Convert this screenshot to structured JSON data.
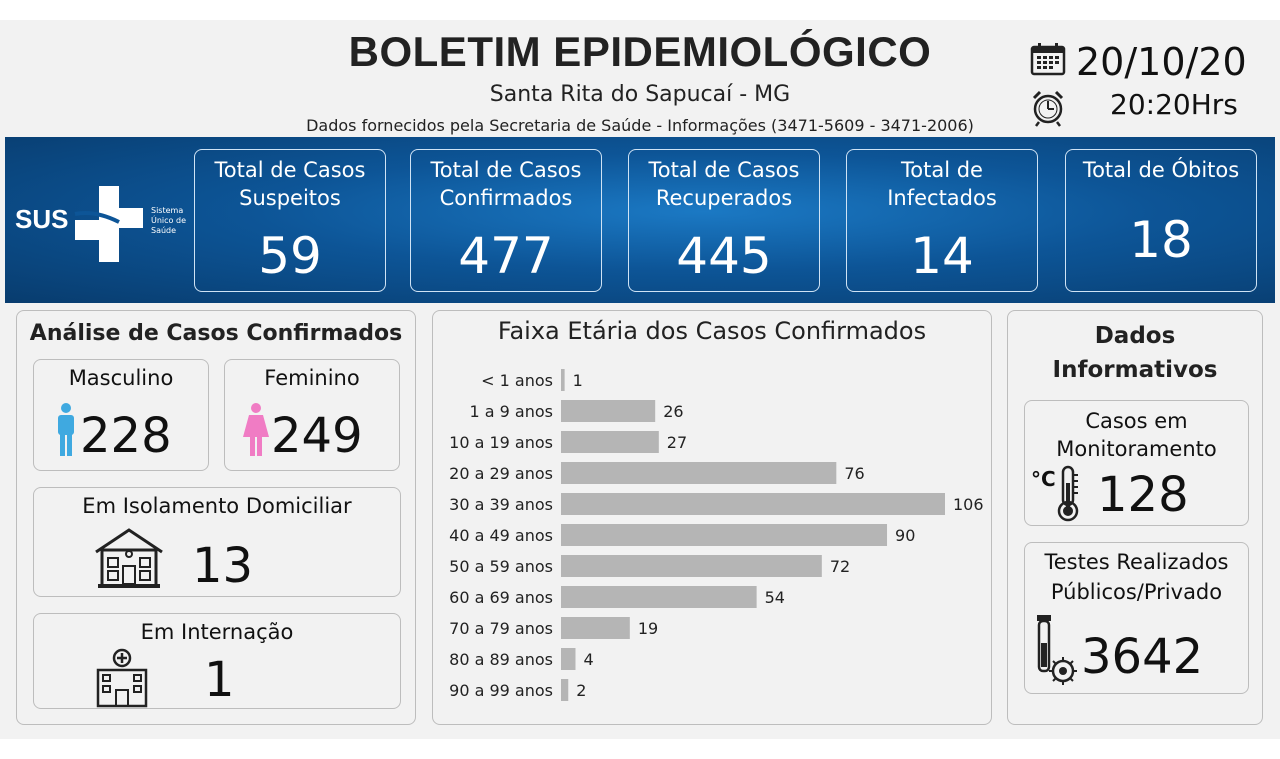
{
  "header": {
    "title": "BOLETIM EPIDEMIOLÓGICO",
    "city": "Santa Rita do Sapucaí - MG",
    "source": "Dados fornecidos pela Secretaria de Saúde - Informações (3471-5609 - 3471-2006)",
    "date": "20/10/20",
    "time": "20:20Hrs"
  },
  "logo": {
    "text": "SUS",
    "subtitle": "Sistema Único de Saúde"
  },
  "stats": [
    {
      "label_line1": "Total de Casos",
      "label_line2": "Suspeitos",
      "value": "59"
    },
    {
      "label_line1": "Total de Casos",
      "label_line2": "Confirmados",
      "value": "477"
    },
    {
      "label_line1": "Total de Casos",
      "label_line2": "Recuperados",
      "value": "445"
    },
    {
      "label_line1": "Total de",
      "label_line2": "Infectados",
      "value": "14"
    },
    {
      "label_line1": "Total de Óbitos",
      "label_line2": "",
      "value": "18"
    }
  ],
  "analysis": {
    "title": "Análise de Casos Confirmados",
    "male": {
      "label": "Masculino",
      "value": "228"
    },
    "female": {
      "label": "Feminino",
      "value": "249"
    },
    "isolation": {
      "label": "Em Isolamento Domiciliar",
      "value": "13"
    },
    "hospital": {
      "label": "Em Internação",
      "value": "1"
    }
  },
  "chart_data": {
    "type": "bar",
    "orientation": "horizontal",
    "title": "Faixa Etária dos Casos Confirmados",
    "categories": [
      "< 1 anos",
      "1 a 9 anos",
      "10 a 19 anos",
      "20 a 29 anos",
      "30 a 39 anos",
      "40 a 49 anos",
      "50 a 59 anos",
      "60 a 69 anos",
      "70 a 79 anos",
      "80 a 89 anos",
      "90 a 99 anos"
    ],
    "values": [
      1,
      26,
      27,
      76,
      106,
      90,
      72,
      54,
      19,
      4,
      2
    ],
    "xlim": [
      0,
      106
    ],
    "grid": false,
    "data_labels": true,
    "bar_color": "#b5b5b5"
  },
  "info": {
    "title_line1": "Dados",
    "title_line2": "Informativos",
    "monitoring": {
      "label_line1": "Casos em",
      "label_line2": "Monitoramento",
      "value": "128",
      "unit": "°C"
    },
    "tests": {
      "label_line1": "Testes Realizados",
      "label_line2": "Públicos/Privado",
      "value": "3642"
    }
  },
  "colors": {
    "banner": "#0d5597",
    "male": "#3fa9e0",
    "female": "#f07cc4",
    "bar": "#b5b5b5"
  }
}
